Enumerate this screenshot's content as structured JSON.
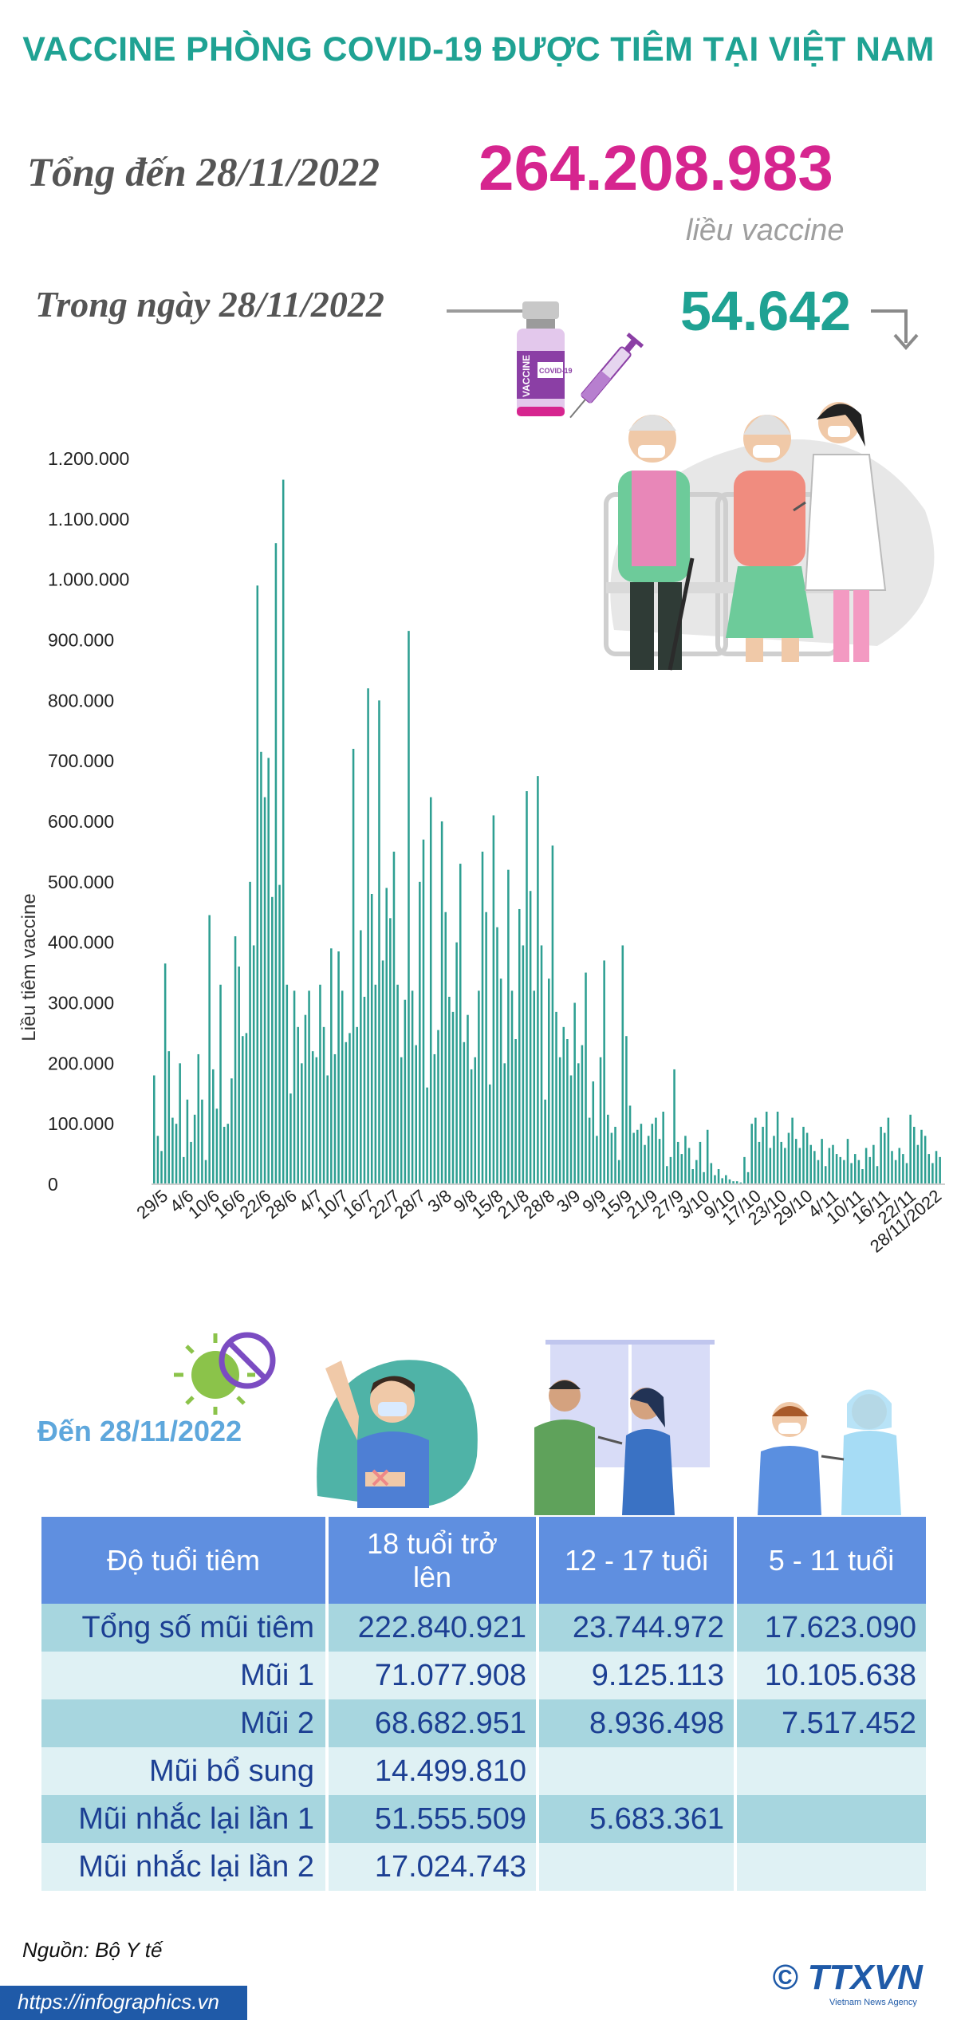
{
  "title": "VACCINE PHÒNG COVID-19 ĐƯỢC TIÊM TẠI VIỆT NAM",
  "total": {
    "label": "Tổng đến 28/11/2022",
    "value": "264.208.983",
    "unit": "liều vaccine"
  },
  "daily": {
    "label": "Trong ngày 28/11/2022",
    "value": "54.642"
  },
  "vial_text": {
    "brand": "VACCINE",
    "label": "COVID-19"
  },
  "icons": [
    "down-arrow-icon",
    "vaccine-vial-icon",
    "syringe-icon",
    "virus-ban-icon"
  ],
  "colors": {
    "title": "#1fa293",
    "total": "#d6258f",
    "bars": "#2e9f92",
    "table_header": "#5f8fe0",
    "table_text": "#1c3f93"
  },
  "chart_data": {
    "type": "bar",
    "title": "",
    "xlabel": "",
    "ylabel": "Liều tiêm vaccine",
    "ylim": [
      0,
      1200000
    ],
    "yticks": [
      "1.200.000",
      "1.100.000",
      "1.000.000",
      "900.000",
      "800.000",
      "700.000",
      "600.000",
      "500.000",
      "400.000",
      "300.000",
      "200.000",
      "100.000",
      "0"
    ],
    "xticks": [
      "29/5",
      "4/6",
      "10/6",
      "16/6",
      "22/6",
      "28/6",
      "4/7",
      "10/7",
      "16/7",
      "22/7",
      "28/7",
      "3/8",
      "9/8",
      "15/8",
      "21/8",
      "28/8",
      "3/9",
      "9/9",
      "15/9",
      "21/9",
      "27/9",
      "3/10",
      "9/10",
      "17/10",
      "23/10",
      "29/10",
      "4/11",
      "10/11",
      "16/11",
      "22/11",
      "28/11/2022"
    ],
    "values": [
      180000,
      80000,
      55000,
      365000,
      220000,
      110000,
      100000,
      200000,
      45000,
      140000,
      70000,
      115000,
      215000,
      140000,
      40000,
      445000,
      190000,
      125000,
      330000,
      95000,
      100000,
      175000,
      410000,
      360000,
      245000,
      250000,
      500000,
      395000,
      990000,
      715000,
      640000,
      705000,
      475000,
      1060000,
      495000,
      1165000,
      330000,
      150000,
      320000,
      260000,
      200000,
      280000,
      320000,
      220000,
      210000,
      330000,
      260000,
      180000,
      390000,
      215000,
      385000,
      320000,
      235000,
      250000,
      720000,
      260000,
      420000,
      310000,
      820000,
      480000,
      330000,
      800000,
      370000,
      490000,
      440000,
      550000,
      330000,
      210000,
      305000,
      915000,
      320000,
      230000,
      500000,
      570000,
      160000,
      640000,
      215000,
      255000,
      600000,
      450000,
      310000,
      285000,
      400000,
      530000,
      235000,
      280000,
      190000,
      210000,
      320000,
      550000,
      450000,
      165000,
      610000,
      425000,
      340000,
      200000,
      520000,
      320000,
      240000,
      455000,
      395000,
      650000,
      485000,
      320000,
      675000,
      395000,
      140000,
      340000,
      560000,
      285000,
      210000,
      260000,
      240000,
      180000,
      300000,
      200000,
      230000,
      350000,
      110000,
      170000,
      80000,
      210000,
      370000,
      115000,
      85000,
      95000,
      40000,
      395000,
      245000,
      130000,
      85000,
      90000,
      100000,
      65000,
      80000,
      100000,
      110000,
      75000,
      120000,
      30000,
      45000,
      190000,
      70000,
      50000,
      80000,
      60000,
      25000,
      40000,
      70000,
      20000,
      90000,
      35000,
      15000,
      25000,
      10000,
      15000,
      8000,
      5000,
      5000,
      3000,
      45000,
      20000,
      100000,
      110000,
      70000,
      95000,
      120000,
      60000,
      80000,
      120000,
      70000,
      60000,
      85000,
      110000,
      75000,
      60000,
      95000,
      85000,
      65000,
      55000,
      40000,
      75000,
      30000,
      60000,
      65000,
      50000,
      45000,
      40000,
      75000,
      35000,
      50000,
      40000,
      25000,
      60000,
      45000,
      65000,
      30000,
      95000,
      85000,
      110000,
      55000,
      40000,
      60000,
      50000,
      35000,
      115000,
      95000,
      65000,
      90000,
      80000,
      50000,
      35000,
      55000,
      45000
    ]
  },
  "table": {
    "den_label": "Đến 28/11/2022",
    "headers": [
      "Độ tuổi tiêm",
      "18 tuổi trở lên",
      "12 - 17 tuổi",
      "5 - 11 tuổi"
    ],
    "rows": [
      {
        "label": "Tổng số mũi tiêm",
        "c1": "222.840.921",
        "c2": "23.744.972",
        "c3": "17.623.090"
      },
      {
        "label": "Mũi 1",
        "c1": "71.077.908",
        "c2": "9.125.113",
        "c3": "10.105.638"
      },
      {
        "label": "Mũi 2",
        "c1": "68.682.951",
        "c2": "8.936.498",
        "c3": "7.517.452"
      },
      {
        "label": "Mũi bổ sung",
        "c1": "14.499.810",
        "c2": "",
        "c3": ""
      },
      {
        "label": "Mũi nhắc lại lần 1",
        "c1": "51.555.509",
        "c2": "5.683.361",
        "c3": ""
      },
      {
        "label": "Mũi nhắc lại lần 2",
        "c1": "17.024.743",
        "c2": "",
        "c3": ""
      }
    ]
  },
  "footer": {
    "source": "Nguồn: Bộ Y tế",
    "url": "https://infographics.vn",
    "logo": "© TTXVN",
    "logo_sub": "Vietnam News Agency"
  }
}
